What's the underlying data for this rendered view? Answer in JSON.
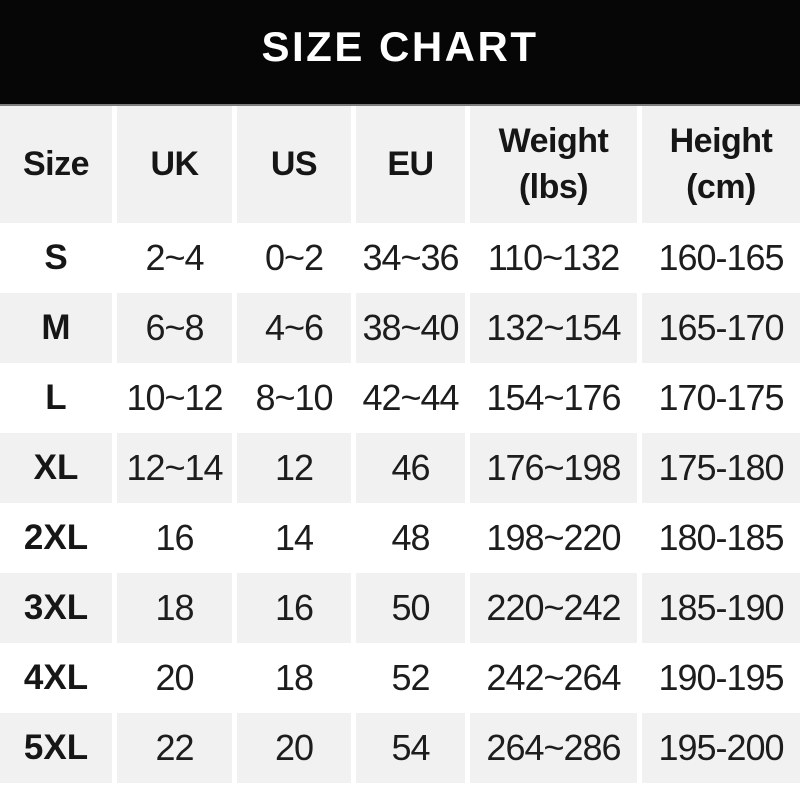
{
  "banner": {
    "title": "SIZE CHART",
    "bg_color": "#060606",
    "text_color": "#ffffff"
  },
  "table": {
    "stripe_color": "#f2f1f1",
    "text_color": "#1d1d1d",
    "columns": [
      {
        "key": "size",
        "label": "Size"
      },
      {
        "key": "uk",
        "label": "UK"
      },
      {
        "key": "us",
        "label": "US"
      },
      {
        "key": "eu",
        "label": "EU"
      },
      {
        "key": "weight",
        "label": "Weight",
        "sub": "(lbs)"
      },
      {
        "key": "height",
        "label": "Height",
        "sub": "(cm)"
      }
    ],
    "rows": [
      [
        "S",
        "2~4",
        "0~2",
        "34~36",
        "110~132",
        "160-165"
      ],
      [
        "M",
        "6~8",
        "4~6",
        "38~40",
        "132~154",
        "165-170"
      ],
      [
        "L",
        "10~12",
        "8~10",
        "42~44",
        "154~176",
        "170-175"
      ],
      [
        "XL",
        "12~14",
        "12",
        "46",
        "176~198",
        "175-180"
      ],
      [
        "2XL",
        "16",
        "14",
        "48",
        "198~220",
        "180-185"
      ],
      [
        "3XL",
        "18",
        "16",
        "50",
        "220~242",
        "185-190"
      ],
      [
        "4XL",
        "20",
        "18",
        "52",
        "242~264",
        "190-195"
      ],
      [
        "5XL",
        "22",
        "20",
        "54",
        "264~286",
        "195-200"
      ]
    ]
  }
}
